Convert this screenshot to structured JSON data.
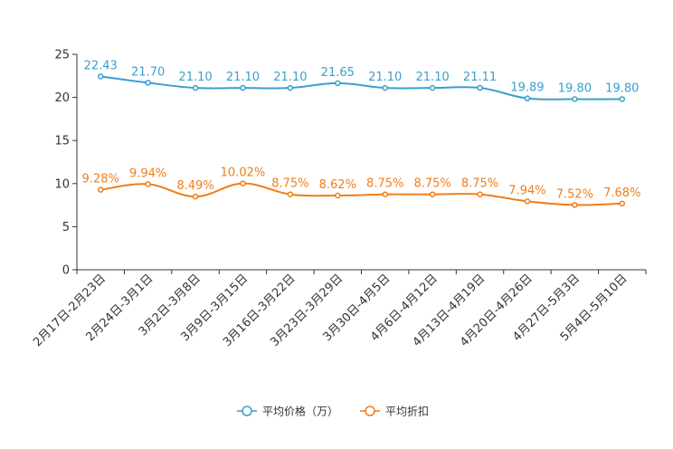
{
  "chart_data": {
    "type": "line",
    "title": "",
    "xlabel": "",
    "ylabel": "",
    "ylim": [
      0,
      25
    ],
    "yticks": [
      0,
      5,
      10,
      15,
      20,
      25
    ],
    "grid": false,
    "legend_position": "bottom-center",
    "categories": [
      "2月17日-2月23日",
      "2月24日-3月1日",
      "3月2日-3月8日",
      "3月9日-3月15日",
      "3月16日-3月22日",
      "3月23日-3月29日",
      "3月30日-4月5日",
      "4月6日-4月12日",
      "4月13日-4月19日",
      "4月20日-4月26日",
      "4月27日-5月3日",
      "5月4日-5月10日"
    ],
    "series": [
      {
        "name": "平均价格（万）",
        "color": "#3a9fcf",
        "values": [
          22.43,
          21.7,
          21.1,
          21.1,
          21.1,
          21.65,
          21.1,
          21.1,
          21.11,
          19.89,
          19.8,
          19.8
        ],
        "labels": [
          "22.43",
          "21.70",
          "21.10",
          "21.10",
          "21.10",
          "21.65",
          "21.10",
          "21.10",
          "21.11",
          "19.89",
          "19.80",
          "19.80"
        ]
      },
      {
        "name": "平均折扣",
        "color": "#f07d1a",
        "values": [
          9.28,
          9.94,
          8.49,
          10.02,
          8.75,
          8.62,
          8.75,
          8.75,
          8.75,
          7.94,
          7.52,
          7.68
        ],
        "labels": [
          "9.28%",
          "9.94%",
          "8.49%",
          "10.02%",
          "8.75%",
          "8.62%",
          "8.75%",
          "8.75%",
          "8.75%",
          "7.94%",
          "7.52%",
          "7.68%"
        ]
      }
    ]
  }
}
